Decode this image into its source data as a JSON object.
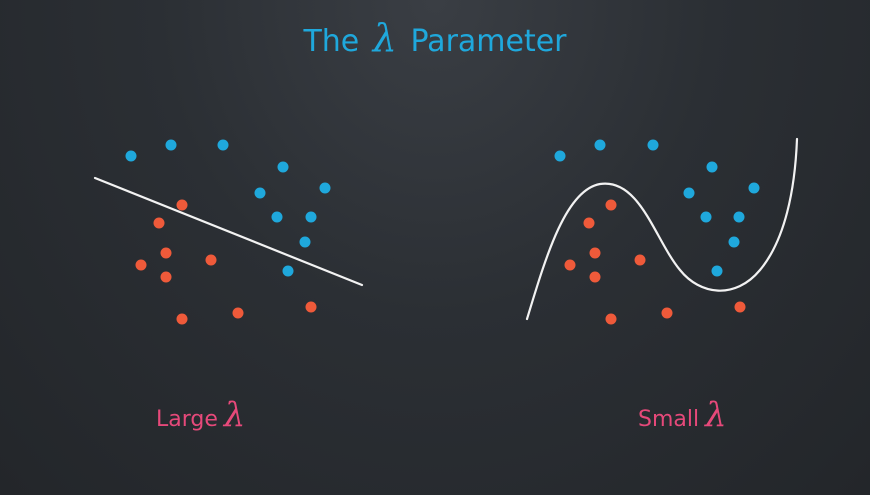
{
  "title": {
    "prefix": "The",
    "symbol": "λ",
    "suffix": "Parameter",
    "color": "#1fa8dc"
  },
  "panels": [
    {
      "label": "Large",
      "symbol": "λ",
      "boundary": "straight line",
      "blue_points": [
        [
          131,
          156
        ],
        [
          171,
          145
        ],
        [
          223,
          145
        ],
        [
          283,
          167
        ],
        [
          325,
          188
        ],
        [
          260,
          193
        ],
        [
          277,
          217
        ],
        [
          311,
          217
        ],
        [
          305,
          242
        ],
        [
          288,
          271
        ]
      ],
      "red_points": [
        [
          182,
          205
        ],
        [
          159,
          223
        ],
        [
          166,
          253
        ],
        [
          141,
          265
        ],
        [
          166,
          277
        ],
        [
          211,
          260
        ],
        [
          182,
          319
        ],
        [
          238,
          313
        ],
        [
          311,
          307
        ]
      ]
    },
    {
      "label": "Small",
      "symbol": "λ",
      "boundary": "wavy curve",
      "blue_points": [
        [
          560,
          156
        ],
        [
          600,
          145
        ],
        [
          653,
          145
        ],
        [
          712,
          167
        ],
        [
          754,
          188
        ],
        [
          689,
          193
        ],
        [
          706,
          217
        ],
        [
          739,
          217
        ],
        [
          734,
          242
        ],
        [
          717,
          271
        ]
      ],
      "red_points": [
        [
          611,
          205
        ],
        [
          589,
          223
        ],
        [
          595,
          253
        ],
        [
          570,
          265
        ],
        [
          595,
          277
        ],
        [
          640,
          260
        ],
        [
          611,
          319
        ],
        [
          667,
          313
        ],
        [
          740,
          307
        ]
      ]
    }
  ],
  "colors": {
    "blue": "#1fa8dc",
    "red": "#ef5a3a",
    "label": "#e6497a",
    "boundary": "#f2f2f2"
  }
}
